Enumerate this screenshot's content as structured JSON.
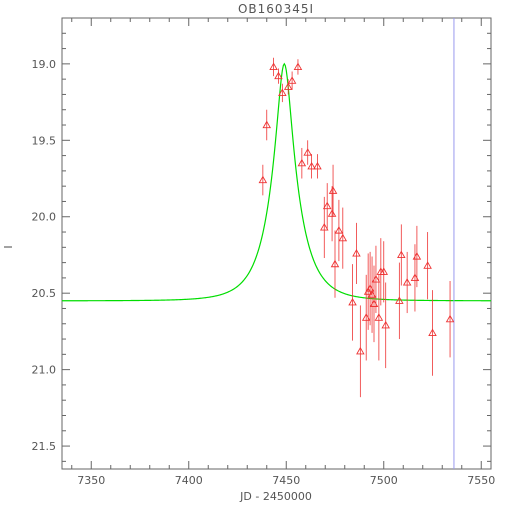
{
  "chart_data": {
    "type": "scatter",
    "title": "OB160345I",
    "xlabel": "JD - 2450000",
    "ylabel": "I",
    "xlim": [
      7335,
      7555
    ],
    "ylim": [
      21.65,
      18.7
    ],
    "y_inverted": true,
    "grid": false,
    "xticks": [
      "7350",
      "7400",
      "7450",
      "7500",
      "7550"
    ],
    "yticks": [
      "19.0",
      "19.5",
      "20.0",
      "20.5",
      "21.0",
      "21.5"
    ],
    "model_curve": {
      "type": "point-lens",
      "t0": 7449,
      "base_mag": 20.55,
      "peak_mag": 19.0,
      "tE": 14,
      "color": "#00dd00"
    },
    "marker_line_x": 7536,
    "marker_line_color": "#9999ee",
    "point_color": "#ee3333",
    "points": [
      {
        "x": 7438.0,
        "y": 19.76,
        "err": 0.1
      },
      {
        "x": 7440.0,
        "y": 19.4,
        "err": 0.1
      },
      {
        "x": 7443.5,
        "y": 19.02,
        "err": 0.06
      },
      {
        "x": 7446.0,
        "y": 19.08,
        "err": 0.05
      },
      {
        "x": 7448.0,
        "y": 19.19,
        "err": 0.06
      },
      {
        "x": 7451.0,
        "y": 19.15,
        "err": 0.05
      },
      {
        "x": 7453.0,
        "y": 19.11,
        "err": 0.06
      },
      {
        "x": 7456.0,
        "y": 19.02,
        "err": 0.05
      },
      {
        "x": 7458.0,
        "y": 19.65,
        "err": 0.1
      },
      {
        "x": 7461.0,
        "y": 19.58,
        "err": 0.08
      },
      {
        "x": 7463.0,
        "y": 19.67,
        "err": 0.08
      },
      {
        "x": 7466.0,
        "y": 19.67,
        "err": 0.08
      },
      {
        "x": 7469.5,
        "y": 20.07,
        "err": 0.2
      },
      {
        "x": 7471.0,
        "y": 19.93,
        "err": 0.15
      },
      {
        "x": 7473.5,
        "y": 19.98,
        "err": 0.18
      },
      {
        "x": 7474.0,
        "y": 19.83,
        "err": 0.17
      },
      {
        "x": 7475.0,
        "y": 20.31,
        "err": 0.22
      },
      {
        "x": 7477.0,
        "y": 20.09,
        "err": 0.2
      },
      {
        "x": 7479.0,
        "y": 20.14,
        "err": 0.2
      },
      {
        "x": 7484.0,
        "y": 20.56,
        "err": 0.25
      },
      {
        "x": 7486.0,
        "y": 20.24,
        "err": 0.2
      },
      {
        "x": 7488.0,
        "y": 20.88,
        "err": 0.3
      },
      {
        "x": 7491.0,
        "y": 20.66,
        "err": 0.28
      },
      {
        "x": 7492.0,
        "y": 20.49,
        "err": 0.25
      },
      {
        "x": 7493.0,
        "y": 20.47,
        "err": 0.24
      },
      {
        "x": 7494.0,
        "y": 20.51,
        "err": 0.25
      },
      {
        "x": 7495.0,
        "y": 20.57,
        "err": 0.25
      },
      {
        "x": 7496.0,
        "y": 20.41,
        "err": 0.22
      },
      {
        "x": 7497.5,
        "y": 20.66,
        "err": 0.28
      },
      {
        "x": 7498.5,
        "y": 20.36,
        "err": 0.22
      },
      {
        "x": 7500.0,
        "y": 20.36,
        "err": 0.2
      },
      {
        "x": 7501.0,
        "y": 20.71,
        "err": 0.28
      },
      {
        "x": 7508.0,
        "y": 20.55,
        "err": 0.25
      },
      {
        "x": 7509.0,
        "y": 20.25,
        "err": 0.2
      },
      {
        "x": 7512.0,
        "y": 20.43,
        "err": 0.2
      },
      {
        "x": 7516.0,
        "y": 20.4,
        "err": 0.22
      },
      {
        "x": 7517.0,
        "y": 20.26,
        "err": 0.2
      },
      {
        "x": 7522.5,
        "y": 20.32,
        "err": 0.22
      },
      {
        "x": 7525.0,
        "y": 20.76,
        "err": 0.28
      },
      {
        "x": 7534.0,
        "y": 20.67,
        "err": 0.25
      }
    ]
  }
}
